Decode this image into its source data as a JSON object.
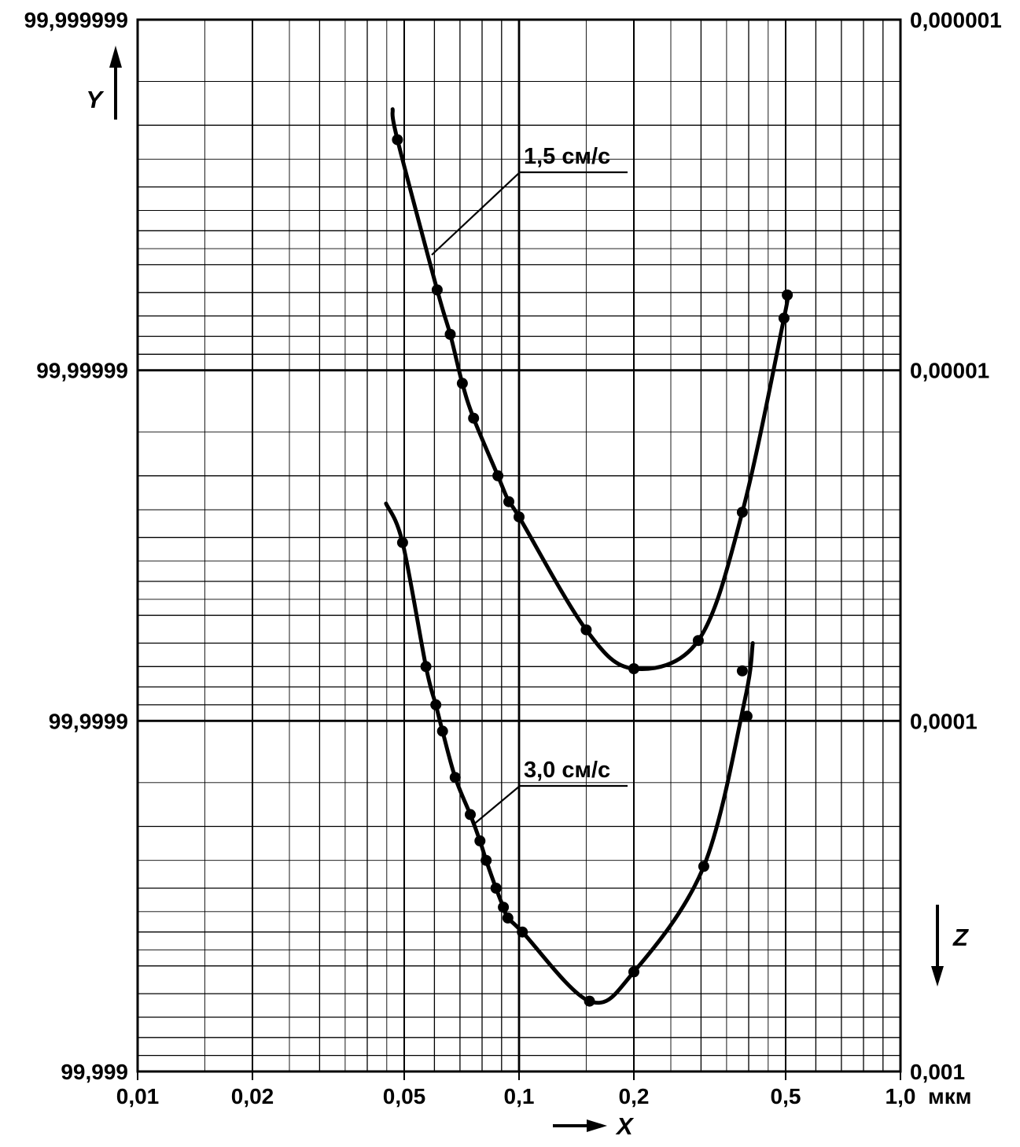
{
  "chart_data": {
    "type": "line",
    "title": "",
    "grid": {
      "style": "log-log graph paper",
      "minor_multiples": [
        1.5,
        2,
        2.5,
        3,
        3.5,
        4,
        4.5,
        5,
        6,
        7,
        8,
        9
      ]
    },
    "x_axis": {
      "arrow_label": "X",
      "unit": "мкм",
      "scale": "log",
      "min": 0.01,
      "max": 1.0,
      "ticks": [
        {
          "v": 0.01,
          "label": "0,01"
        },
        {
          "v": 0.02,
          "label": "0,02"
        },
        {
          "v": 0.05,
          "label": "0,05"
        },
        {
          "v": 0.1,
          "label": "0,1"
        },
        {
          "v": 0.2,
          "label": "0,2"
        },
        {
          "v": 0.5,
          "label": "0,5"
        },
        {
          "v": 1.0,
          "label": "1,0"
        }
      ]
    },
    "left_axis": {
      "arrow_label": "Y",
      "direction": "up",
      "ticks": [
        {
          "v": 1e-06,
          "label": "99,999999"
        },
        {
          "v": 1e-05,
          "label": "99,99999"
        },
        {
          "v": 0.0001,
          "label": "99,9999"
        },
        {
          "v": 0.001,
          "label": "99,999"
        }
      ]
    },
    "right_axis": {
      "arrow_label": "Z",
      "direction": "down",
      "scale": "log",
      "min": 1e-06,
      "max": 0.001,
      "ticks": [
        {
          "v": 1e-06,
          "label": "0,000001"
        },
        {
          "v": 1e-05,
          "label": "0,00001"
        },
        {
          "v": 0.0001,
          "label": "0,0001"
        },
        {
          "v": 0.001,
          "label": "0,001"
        }
      ]
    },
    "series": [
      {
        "name": "1,5 см/с",
        "color": "#000000",
        "points": [
          [
            0.048,
            2.2e-06
          ],
          [
            0.061,
            5.9e-06
          ],
          [
            0.066,
            7.9e-06
          ],
          [
            0.071,
            1.09e-05
          ],
          [
            0.076,
            1.37e-05
          ],
          [
            0.088,
            2e-05
          ],
          [
            0.094,
            2.37e-05
          ],
          [
            0.1,
            2.62e-05
          ],
          [
            0.15,
            5.5e-05
          ],
          [
            0.2,
            7.1e-05
          ],
          [
            0.295,
            5.9e-05
          ],
          [
            0.385,
            2.54e-05
          ],
          [
            0.495,
            7.1e-06
          ],
          [
            0.505,
            6.1e-06
          ]
        ],
        "path": [
          [
            0.0466,
            1.8e-06
          ],
          [
            0.048,
            2.2e-06
          ],
          [
            0.061,
            5.9e-06
          ],
          [
            0.066,
            7.9e-06
          ],
          [
            0.071,
            1.09e-05
          ],
          [
            0.076,
            1.37e-05
          ],
          [
            0.088,
            2e-05
          ],
          [
            0.094,
            2.37e-05
          ],
          [
            0.1,
            2.62e-05
          ],
          [
            0.15,
            5.5e-05
          ],
          [
            0.2,
            7.1e-05
          ],
          [
            0.295,
            5.9e-05
          ],
          [
            0.385,
            2.54e-05
          ],
          [
            0.495,
            7.1e-06
          ],
          [
            0.505,
            6.1e-06
          ]
        ]
      },
      {
        "name": "3,0 см/с",
        "color": "#000000",
        "points": [
          [
            0.0495,
            3.1e-05
          ],
          [
            0.057,
            7e-05
          ],
          [
            0.0605,
            9e-05
          ],
          [
            0.063,
            0.000107
          ],
          [
            0.068,
            0.000145
          ],
          [
            0.0745,
            0.000185
          ],
          [
            0.079,
            0.00022
          ],
          [
            0.082,
            0.00025
          ],
          [
            0.087,
            0.0003
          ],
          [
            0.091,
            0.00034
          ],
          [
            0.0935,
            0.000365
          ],
          [
            0.102,
            0.0004
          ],
          [
            0.153,
            0.00063
          ],
          [
            0.2,
            0.00052
          ],
          [
            0.305,
            0.00026
          ],
          [
            0.385,
            7.2e-05
          ],
          [
            0.396,
            9.7e-05
          ]
        ],
        "path": [
          [
            0.0448,
            2.4e-05
          ],
          [
            0.0495,
            3.1e-05
          ],
          [
            0.057,
            7e-05
          ],
          [
            0.0605,
            9e-05
          ],
          [
            0.063,
            0.000107
          ],
          [
            0.068,
            0.000145
          ],
          [
            0.0745,
            0.000185
          ],
          [
            0.079,
            0.00022
          ],
          [
            0.082,
            0.00025
          ],
          [
            0.087,
            0.0003
          ],
          [
            0.091,
            0.00034
          ],
          [
            0.0935,
            0.000365
          ],
          [
            0.102,
            0.0004
          ],
          [
            0.153,
            0.00063
          ],
          [
            0.2,
            0.00052
          ],
          [
            0.305,
            0.00026
          ],
          [
            0.39,
            8.8e-05
          ],
          [
            0.41,
            6e-05
          ]
        ]
      }
    ]
  }
}
